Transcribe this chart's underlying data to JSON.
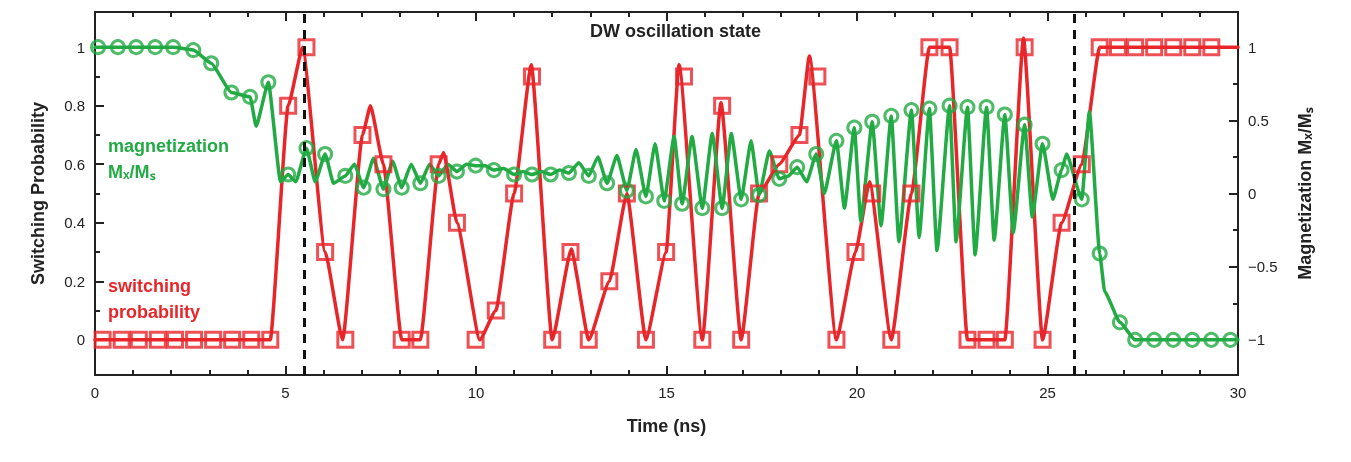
{
  "chart_data": {
    "type": "line",
    "xlabel": "Time (ns)",
    "ylabel": "Switching Probability",
    "y2label": "Magnetization Mₓ/Mₛ",
    "annotations": [
      "DW oscillation state"
    ],
    "xlim": [
      0,
      30
    ],
    "xticks": [
      0,
      {
        "value": 1,
        "label": null
      },
      {
        "value": 2,
        "label": null
      },
      {
        "value": 3,
        "label": null
      },
      {
        "value": 4,
        "label": null
      },
      5,
      {
        "value": 6,
        "label": null
      },
      {
        "value": 7,
        "label": null
      },
      {
        "value": 8,
        "label": null
      },
      {
        "value": 9,
        "label": null
      },
      10,
      {
        "value": 11,
        "label": null
      },
      {
        "value": 12,
        "label": null
      },
      {
        "value": 13,
        "label": null
      },
      {
        "value": 14,
        "label": null
      },
      15,
      {
        "value": 16,
        "label": null
      },
      {
        "value": 17,
        "label": null
      },
      {
        "value": 18,
        "label": null
      },
      {
        "value": 19,
        "label": null
      },
      20,
      {
        "value": 21,
        "label": null
      },
      {
        "value": 22,
        "label": null
      },
      {
        "value": 23,
        "label": null
      },
      {
        "value": 24,
        "label": null
      },
      25,
      {
        "value": 26,
        "label": null
      },
      {
        "value": 27,
        "label": null
      },
      {
        "value": 28,
        "label": null
      },
      {
        "value": 29,
        "label": null
      },
      30
    ],
    "ylim": [
      -0.12,
      1.12
    ],
    "yticks": [
      0,
      {
        "value": 0.1,
        "label": null
      },
      0.2,
      {
        "value": 0.3,
        "label": null
      },
      0.4,
      {
        "value": 0.5,
        "label": null
      },
      0.6,
      {
        "value": 0.7,
        "label": null
      },
      0.8,
      {
        "value": 0.9,
        "label": null
      },
      1
    ],
    "y2lim": [
      -1.24,
      1.24
    ],
    "y2ticks": [
      {
        "value": -1,
        "label": "−1"
      },
      {
        "value": -0.75,
        "label": null
      },
      {
        "value": -0.5,
        "label": "−0.5"
      },
      {
        "value": -0.25,
        "label": null
      },
      0,
      {
        "value": 0.25,
        "label": null
      },
      0.5,
      {
        "value": 0.75,
        "label": null
      },
      1
    ],
    "grid": false,
    "legend": false,
    "ref_lines": [
      {
        "axis": "x",
        "value": 5.5,
        "label": null,
        "color": "#111111",
        "line_style": "dashed"
      },
      {
        "axis": "x",
        "value": 25.7,
        "label": null,
        "color": "#111111",
        "line_style": "dashed"
      }
    ],
    "series": [
      {
        "name": "switching probability",
        "color": "#e8262a",
        "marker": "none",
        "x": [
          0,
          4.6,
          5.07,
          5.45,
          6.04,
          6.5,
          7.02,
          7.23,
          7.57,
          8.05,
          8.54,
          9.02,
          9.15,
          9.5,
          10.1,
          10.52,
          11.0,
          11.45,
          12.0,
          12.5,
          12.96,
          13.5,
          13.96,
          14.46,
          14.99,
          15.33,
          15.94,
          16.43,
          16.96,
          17.43,
          17.96,
          18.49,
          18.75,
          19.46,
          19.96,
          20.33,
          20.9,
          21.43,
          21.9,
          22.43,
          22.9,
          23.88,
          24.37,
          24.87,
          25.37,
          25.9,
          26.37,
          30
        ],
        "values": [
          0,
          0,
          0.8,
          1.0,
          0.3,
          0,
          0.7,
          0.8,
          0.6,
          0,
          0,
          0.6,
          0.64,
          0.4,
          0,
          0.1,
          0.5,
          0.94,
          0,
          0.31,
          0,
          0.2,
          0.5,
          0,
          0.3,
          0.94,
          0,
          0.81,
          0,
          0.5,
          0.6,
          0.7,
          0.97,
          0,
          0.3,
          0.54,
          0,
          0.5,
          1,
          1,
          0,
          0,
          1.03,
          0,
          0.4,
          0.6,
          1,
          1
        ]
      },
      {
        "type": "scatter",
        "color": "#e8262a",
        "marker": "square",
        "x": [
          0.2,
          0.7,
          1.15,
          1.65,
          2.1,
          2.6,
          3.1,
          3.6,
          4.1,
          4.6,
          5.07,
          5.55,
          6.04,
          6.57,
          7.02,
          7.57,
          8.05,
          8.54,
          9.02,
          9.5,
          9.99,
          10.52,
          11.0,
          11.47,
          12.0,
          12.48,
          12.96,
          13.5,
          13.96,
          14.46,
          14.99,
          15.46,
          15.94,
          16.46,
          16.96,
          17.43,
          17.96,
          18.49,
          18.96,
          19.46,
          19.96,
          20.4,
          20.9,
          21.43,
          21.9,
          22.43,
          22.9,
          23.4,
          23.88,
          24.4,
          24.87,
          25.37,
          25.9,
          26.37,
          26.85,
          27.3,
          27.8,
          28.3,
          28.8,
          29.3
        ],
        "values": [
          0,
          0,
          0,
          0,
          0,
          0,
          0,
          0,
          0,
          0,
          0.8,
          1.0,
          0.3,
          0,
          0.7,
          0.6,
          0,
          0,
          0.6,
          0.4,
          0,
          0.1,
          0.5,
          0.9,
          0,
          0.3,
          0,
          0.2,
          0.5,
          0,
          0.3,
          0.9,
          0,
          0.8,
          0,
          0.5,
          0.6,
          0.7,
          0.9,
          0,
          0.3,
          0.5,
          0,
          0.5,
          1,
          1,
          0,
          0,
          0,
          1,
          0,
          0.4,
          0.6,
          1,
          1,
          1,
          1,
          1,
          1,
          1
        ]
      },
      {
        "name": "magnetization Mₓ/Mₛ",
        "axis": "y2",
        "color": "#22aa44",
        "marker": "none",
        "x": [
          0,
          2.05,
          2.58,
          3.05,
          3.58,
          4.07,
          4.23,
          4.55,
          4.87,
          5.07,
          5.27,
          5.55,
          5.78,
          6.04,
          6.26,
          6.57,
          6.81,
          7.05,
          7.31,
          7.57,
          7.81,
          8.05,
          8.3,
          8.54,
          8.78,
          9.02,
          9.26,
          9.5,
          9.75,
          9.99,
          10.24,
          10.47,
          10.73,
          11.0,
          11.24,
          11.47,
          11.72,
          11.96,
          12.2,
          12.44,
          12.7,
          12.96,
          13.2,
          13.44,
          13.7,
          13.96,
          14.2,
          14.46,
          14.7,
          14.94,
          15.2,
          15.41,
          15.67,
          15.94,
          16.2,
          16.46,
          16.7,
          16.96,
          17.22,
          17.43,
          17.7,
          17.96,
          18.2,
          18.43,
          18.68,
          18.93,
          19.14,
          19.46,
          19.67,
          19.93,
          20.1,
          20.4,
          20.63,
          20.9,
          21.1,
          21.43,
          21.63,
          21.9,
          22.1,
          22.43,
          22.6,
          22.9,
          23.1,
          23.4,
          23.6,
          23.88,
          24.1,
          24.4,
          24.6,
          24.87,
          25.14,
          25.37,
          25.5,
          25.9,
          26.1,
          26.37,
          26.5,
          26.9,
          27.3,
          30
        ],
        "values": [
          1,
          1,
          0.98,
          0.89,
          0.69,
          0.66,
          0.46,
          0.76,
          0.08,
          0.13,
          0.08,
          0.31,
          0.08,
          0.27,
          0.07,
          0.12,
          0.2,
          0.04,
          0.24,
          0.03,
          0.22,
          0.04,
          0.2,
          0.07,
          0.2,
          0.12,
          0.2,
          0.15,
          0.2,
          0.19,
          0.19,
          0.16,
          0.17,
          0.13,
          0.15,
          0.13,
          0.15,
          0.13,
          0.16,
          0.14,
          0.21,
          0.12,
          0.25,
          0.07,
          0.26,
          0.02,
          0.3,
          -0.02,
          0.34,
          -0.05,
          0.39,
          -0.07,
          0.39,
          -0.1,
          0.41,
          -0.1,
          0.41,
          -0.04,
          0.36,
          -0.01,
          0.29,
          0.1,
          0.12,
          0.18,
          0.08,
          0.27,
          0.0,
          0.36,
          -0.1,
          0.45,
          -0.19,
          0.49,
          -0.22,
          0.53,
          -0.33,
          0.57,
          -0.3,
          0.58,
          -0.39,
          0.6,
          -0.33,
          0.59,
          -0.42,
          0.59,
          -0.32,
          0.54,
          -0.27,
          0.47,
          -0.16,
          0.34,
          -0.04,
          0.16,
          0.27,
          -0.04,
          0.56,
          -0.41,
          -0.67,
          -0.88,
          -1,
          -1
        ]
      },
      {
        "type": "scatter",
        "axis": "y2",
        "color": "#22aa44",
        "marker": "circle",
        "x": [
          0.08,
          0.6,
          1.08,
          1.58,
          2.05,
          2.58,
          3.05,
          3.58,
          4.07,
          4.55,
          5.07,
          5.55,
          6.04,
          6.57,
          7.05,
          7.57,
          8.05,
          8.54,
          9.02,
          9.5,
          9.99,
          10.47,
          11.0,
          11.47,
          11.96,
          12.44,
          12.96,
          13.44,
          13.96,
          14.46,
          14.94,
          15.41,
          15.94,
          16.46,
          16.96,
          17.43,
          17.96,
          18.43,
          18.93,
          19.46,
          19.93,
          20.4,
          20.9,
          21.43,
          21.9,
          22.43,
          22.9,
          23.4,
          23.88,
          24.4,
          24.87,
          25.37,
          25.9,
          26.37,
          26.9,
          27.3,
          27.8,
          28.3,
          28.8,
          29.3,
          29.8
        ],
        "values": [
          1,
          1,
          1,
          1,
          1,
          0.98,
          0.89,
          0.69,
          0.66,
          0.76,
          0.13,
          0.31,
          0.27,
          0.12,
          0.04,
          0.03,
          0.04,
          0.07,
          0.12,
          0.15,
          0.19,
          0.16,
          0.13,
          0.13,
          0.13,
          0.14,
          0.12,
          0.07,
          0.02,
          -0.02,
          -0.05,
          -0.07,
          -0.1,
          -0.1,
          -0.04,
          -0.01,
          0.1,
          0.18,
          0.27,
          0.36,
          0.45,
          0.49,
          0.53,
          0.57,
          0.58,
          0.6,
          0.59,
          0.59,
          0.54,
          0.47,
          0.34,
          0.16,
          -0.04,
          -0.41,
          -0.88,
          -1,
          -1,
          -1,
          -1,
          -1,
          -1
        ]
      }
    ]
  }
}
